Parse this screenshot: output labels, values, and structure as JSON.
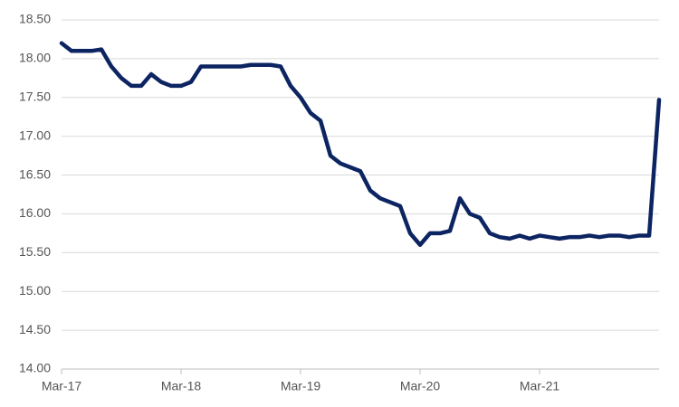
{
  "chart_data": {
    "type": "line",
    "categories": [
      "Mar-17",
      null,
      null,
      null,
      null,
      null,
      null,
      null,
      null,
      null,
      null,
      null,
      "Mar-18",
      null,
      null,
      null,
      null,
      null,
      null,
      null,
      null,
      null,
      null,
      null,
      "Mar-19",
      null,
      null,
      null,
      null,
      null,
      null,
      null,
      null,
      null,
      null,
      null,
      "Mar-20",
      null,
      null,
      null,
      null,
      null,
      null,
      null,
      null,
      null,
      null,
      null,
      "Mar-21",
      null,
      null,
      null,
      null,
      null,
      null,
      null,
      null,
      null,
      null,
      null,
      null
    ],
    "values": [
      18.2,
      18.1,
      18.1,
      18.1,
      18.12,
      17.9,
      17.75,
      17.65,
      17.65,
      17.8,
      17.7,
      17.65,
      17.65,
      17.7,
      17.9,
      17.9,
      17.9,
      17.9,
      17.9,
      17.92,
      17.92,
      17.92,
      17.9,
      17.65,
      17.5,
      17.3,
      17.2,
      16.75,
      16.65,
      16.6,
      16.55,
      16.3,
      16.2,
      16.15,
      16.1,
      15.75,
      15.6,
      15.75,
      15.75,
      15.78,
      16.2,
      16.0,
      15.95,
      15.75,
      15.7,
      15.68,
      15.72,
      15.68,
      15.72,
      15.7,
      15.68,
      15.7,
      15.7,
      15.72,
      15.7,
      15.72,
      15.72,
      15.7,
      15.72,
      15.72,
      17.47
    ],
    "color": "#0c2461",
    "ylim": [
      14,
      18.5
    ],
    "yticks": [
      {
        "value": 14,
        "label": "14.00"
      },
      {
        "value": 14.5,
        "label": "14.50"
      },
      {
        "value": 15,
        "label": "15.00"
      },
      {
        "value": 15.5,
        "label": "15.50"
      },
      {
        "value": 16,
        "label": "16.00"
      },
      {
        "value": 16.5,
        "label": "16.50"
      },
      {
        "value": 17,
        "label": "17.00"
      },
      {
        "value": 17.5,
        "label": "17.50"
      },
      {
        "value": 18,
        "label": "18.00"
      },
      {
        "value": 18.5,
        "label": "18.50"
      }
    ],
    "grid": true
  }
}
